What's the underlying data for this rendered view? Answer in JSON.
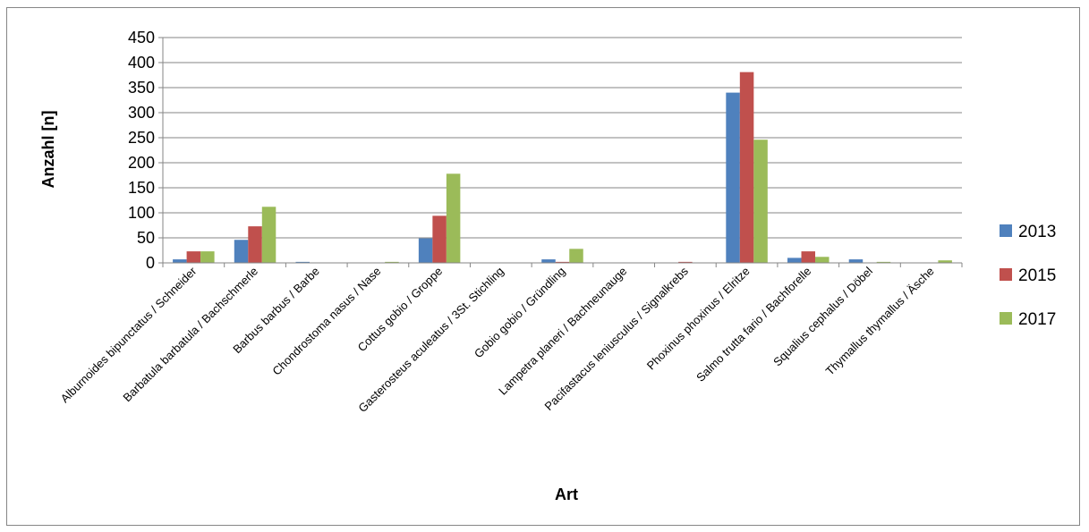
{
  "chart_data": {
    "type": "bar",
    "title": "",
    "xlabel": "Art",
    "ylabel": "Anzahl [n]",
    "ylim": [
      0,
      450
    ],
    "yticks": [
      0,
      50,
      100,
      150,
      200,
      250,
      300,
      350,
      400,
      450
    ],
    "grid": true,
    "legend_position": "right",
    "categories": [
      "Alburnoides bipunctatus / Schneider",
      "Barbatula barbatula / Bachschmerle",
      "Barbus barbus / Barbe",
      "Chondrostoma nasus / Nase",
      "Cottus gobio / Groppe",
      "Gasterosteus aculeatus / 3St. Stichling",
      "Gobio gobio / Gründling",
      "Lampetra planeri / Bachneunauge",
      "Pacifastacus leniusculus / Signalkrebs",
      "Phoxinus phoxinus / Elritze",
      "Salmo trutta fario / Bachforelle",
      "Squalius cephalus / Döbel",
      "Thymallus thymallus / Äsche"
    ],
    "series": [
      {
        "name": "2013",
        "color": "#4f81bd",
        "values": [
          7,
          46,
          2,
          0,
          49,
          0,
          7,
          0,
          0,
          340,
          10,
          7,
          0
        ]
      },
      {
        "name": "2015",
        "color": "#c0504d",
        "values": [
          23,
          73,
          0,
          0,
          94,
          0,
          2,
          0,
          2,
          381,
          23,
          0,
          0
        ]
      },
      {
        "name": "2017",
        "color": "#9bbb59",
        "values": [
          23,
          112,
          0,
          2,
          178,
          0,
          28,
          0,
          0,
          246,
          12,
          2,
          5
        ]
      }
    ]
  }
}
